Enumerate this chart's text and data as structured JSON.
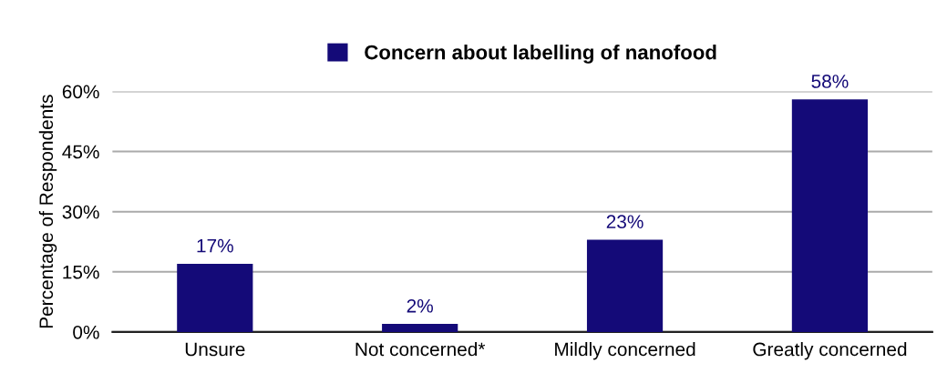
{
  "chart_data": {
    "type": "bar",
    "ylabel": "Percentage of Respondents",
    "categories": [
      "Unsure",
      "Not concerned*",
      "Mildly concerned",
      "Greatly concerned"
    ],
    "series": [
      {
        "name": "Concern about labelling of nanofood",
        "color": "#140a78",
        "values": [
          17,
          2,
          23,
          58
        ],
        "value_labels": [
          "17%",
          "2%",
          "23%",
          "58%"
        ]
      }
    ],
    "ylim": [
      0,
      60
    ],
    "yticks": [
      {
        "value": 0,
        "label": "0%"
      },
      {
        "value": 15,
        "label": "15%"
      },
      {
        "value": 30,
        "label": "30%"
      },
      {
        "value": 45,
        "label": "45%"
      },
      {
        "value": 60,
        "label": "60%"
      }
    ],
    "grid": "y",
    "legend": "top"
  }
}
